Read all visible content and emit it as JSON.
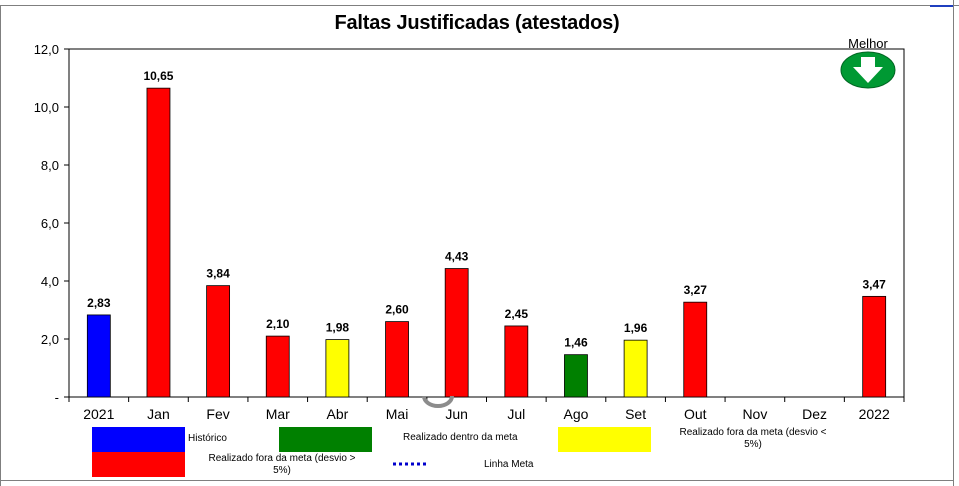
{
  "chart_data": {
    "type": "bar",
    "title": "Faltas Justificadas (atestados)",
    "categories": [
      "2021",
      "Jan",
      "Fev",
      "Mar",
      "Abr",
      "Mai",
      "Jun",
      "Jul",
      "Ago",
      "Set",
      "Out",
      "Nov",
      "Dez",
      "2022"
    ],
    "values": [
      2.83,
      10.65,
      3.84,
      2.1,
      1.98,
      2.6,
      4.43,
      2.45,
      1.46,
      1.96,
      3.27,
      null,
      null,
      3.47
    ],
    "value_labels": [
      "2,83",
      "10,65",
      "3,84",
      "2,10",
      "1,98",
      "2,60",
      "4,43",
      "2,45",
      "1,46",
      "1,96",
      "3,27",
      "",
      "",
      "3,47"
    ],
    "bar_status": [
      "historico",
      "fora_maior",
      "fora_maior",
      "fora_maior",
      "fora_menor",
      "fora_maior",
      "fora_maior",
      "fora_maior",
      "dentro",
      "fora_menor",
      "fora_maior",
      "",
      "",
      "fora_maior"
    ],
    "ylim": [
      0,
      12
    ],
    "yticks": [
      0,
      2,
      4,
      6,
      8,
      10,
      12
    ],
    "ytick_labels": [
      "-",
      "2,0",
      "4,0",
      "6,0",
      "8,0",
      "10,0",
      "12,0"
    ],
    "xlabel": "",
    "ylabel": "",
    "grid": false,
    "legend_position": "bottom",
    "direction_badge": "Melhor",
    "direction": "down"
  },
  "legend": {
    "historico": "Histórico",
    "dentro": "Realizado dentro da meta",
    "fora_menor_line1": "Realizado fora da meta (desvio <",
    "fora_menor_line2": "5%)",
    "fora_maior_line1": "Realizado fora da meta (desvio >",
    "fora_maior_line2": "5%)",
    "meta": "Linha Meta"
  },
  "colors": {
    "historico": "#0000ff",
    "dentro": "#008000",
    "fora_menor": "#ffff00",
    "fora_maior": "#ff0000",
    "meta": "#0000cc",
    "badge": "#009933"
  }
}
